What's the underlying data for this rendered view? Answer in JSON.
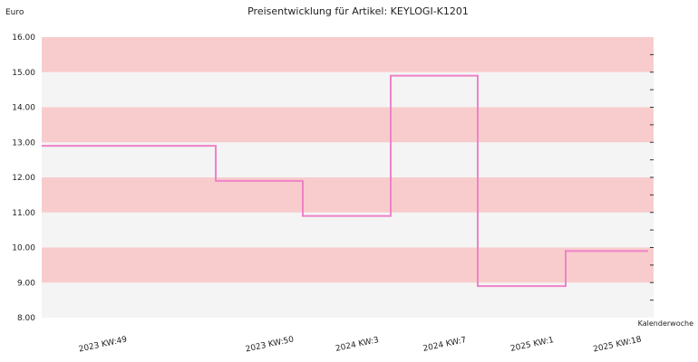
{
  "chart_data": {
    "type": "line",
    "step": true,
    "title": "Preisentwicklung für Artikel: KEYLOGI-K1201",
    "ylabel": "Euro",
    "xlabel": "Kalenderwoche",
    "ylim": [
      8,
      16
    ],
    "yticks": [
      "8.00",
      "9.00",
      "10.00",
      "11.00",
      "12.00",
      "13.00",
      "14.00",
      "15.00",
      "16.00"
    ],
    "categories": [
      "2023 KW:49",
      "2023 KW:50",
      "2024 KW:3",
      "2024 KW:7",
      "2025 KW:1",
      "2025 KW:18"
    ],
    "series": [
      {
        "values": [
          12.9,
          11.9,
          10.9,
          14.9,
          8.9,
          9.9
        ],
        "color": "#ee82c8"
      }
    ],
    "grid": true,
    "band_colors": [
      "#f8cccc",
      "#f4f4f4"
    ],
    "legend": "none"
  }
}
